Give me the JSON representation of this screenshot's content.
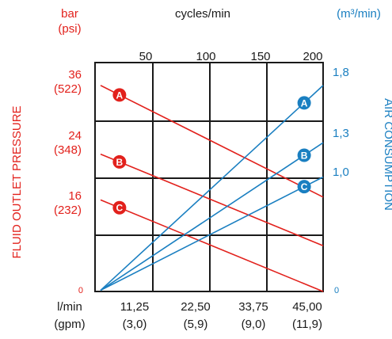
{
  "colors": {
    "pressure": "#e2211c",
    "air": "#1a7fc1",
    "grid": "#1a1a1a",
    "text": "#1a1a1a"
  },
  "header": {
    "left_unit_line1": "bar",
    "left_unit_line2": "(psi)",
    "top_axis_label": "cycles/min",
    "right_unit": "(m³/min)"
  },
  "side_labels": {
    "left": "FLUID OUTLET PRESSURE",
    "right": "AIR CONSUMPTION"
  },
  "bottom_axis": {
    "unit_line1": "l/min",
    "unit_line2": "(gpm)",
    "ticks": [
      {
        "line1": "11,25",
        "line2": "(3,0)"
      },
      {
        "line1": "22,50",
        "line2": "(5,9)"
      },
      {
        "line1": "33,75",
        "line2": "(9,0)"
      },
      {
        "line1": "45,00",
        "line2": "(11,9)"
      }
    ]
  },
  "top_ticks": [
    "50",
    "100",
    "150",
    "200"
  ],
  "left_ticks": [
    {
      "line1": "36",
      "line2": "(522)"
    },
    {
      "line1": "24",
      "line2": "(348)"
    },
    {
      "line1": "16",
      "line2": "(232)"
    },
    {
      "line1": "0",
      "line2": ""
    }
  ],
  "right_ticks": [
    "1,8",
    "1,3",
    "1,0",
    "0"
  ],
  "chart_data": {
    "type": "line",
    "x_top": {
      "label": "cycles/min",
      "range": [
        0,
        200
      ],
      "ticks": [
        50,
        100,
        150,
        200
      ]
    },
    "x_bottom": {
      "label": "l/min (gpm)",
      "range": [
        0,
        45
      ],
      "ticks": [
        11.25,
        22.5,
        33.75,
        45.0
      ]
    },
    "y_left": {
      "label": "FLUID OUTLET PRESSURE",
      "unit": "bar (psi)",
      "range": [
        0,
        40
      ]
    },
    "y_right": {
      "label": "AIR CONSUMPTION",
      "unit": "m³/min",
      "range": [
        0,
        2.0
      ]
    },
    "grid": true,
    "series": [
      {
        "name": "A",
        "axis": "pressure",
        "points": [
          [
            0,
            36
          ],
          [
            200,
            16.5
          ]
        ]
      },
      {
        "name": "B",
        "axis": "pressure",
        "points": [
          [
            0,
            24
          ],
          [
            200,
            8
          ]
        ]
      },
      {
        "name": "C",
        "axis": "pressure",
        "points": [
          [
            0,
            16
          ],
          [
            200,
            0
          ]
        ]
      },
      {
        "name": "A",
        "axis": "air",
        "points": [
          [
            0,
            0.01
          ],
          [
            200,
            1.8
          ]
        ]
      },
      {
        "name": "B",
        "axis": "air",
        "points": [
          [
            0,
            0.01
          ],
          [
            200,
            1.3
          ]
        ]
      },
      {
        "name": "C",
        "axis": "air",
        "points": [
          [
            0,
            0.01
          ],
          [
            200,
            1.0
          ]
        ]
      }
    ]
  }
}
